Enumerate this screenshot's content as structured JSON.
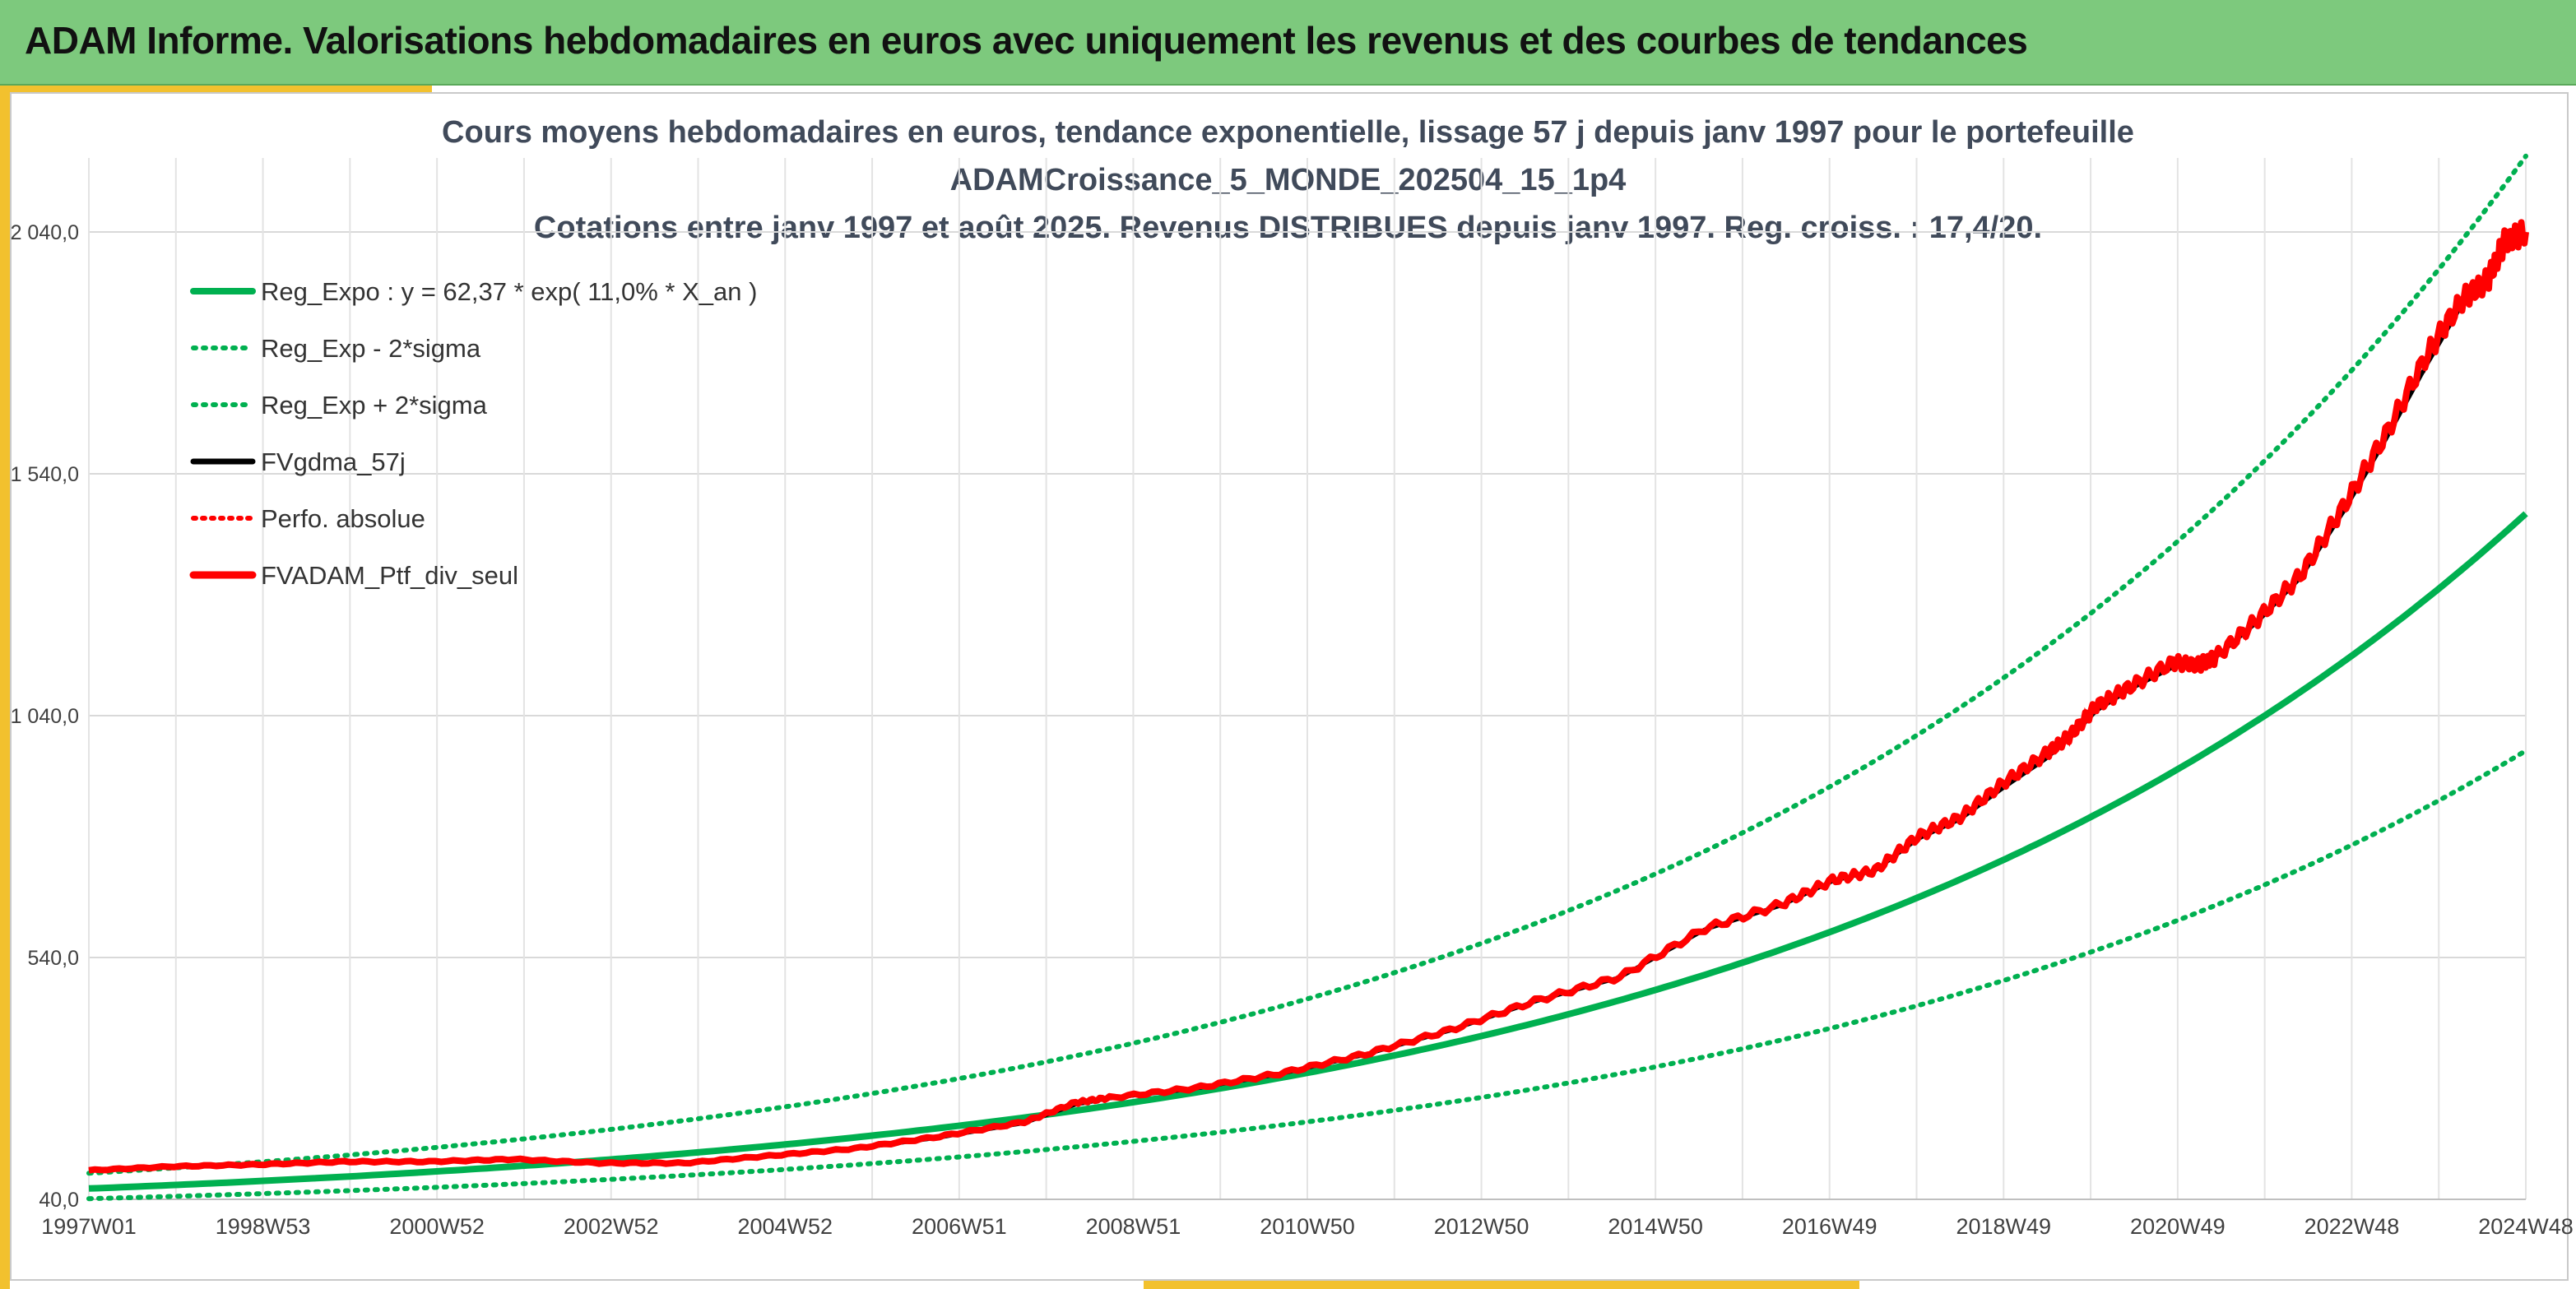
{
  "header": {
    "title": "ADAM Informe. Valorisations hebdomadaires en euros avec uniquement les revenus et des courbes de tendances"
  },
  "colors": {
    "banner": "#7dc97d",
    "accent": "#f2c12e",
    "regression": "#00b050",
    "smoothed": "#000000",
    "portfolio": "#ff0000"
  },
  "chart_data": {
    "type": "line",
    "title": "Cours moyens hebdomadaires en euros, tendance exponentielle, lissage 57 j depuis janv 1997 pour le portefeuille",
    "subtitle": "ADAMCroissance_5_MONDE_202504_15_1p4",
    "subtitle2": "Cotations entre janv 1997 et août 2025. Revenus DISTRIBUES depuis janv 1997. Reg. croiss. : 17,4/20.",
    "xlabel": "",
    "ylabel": "",
    "x_ticks": [
      "1997W01",
      "1998W53",
      "2000W52",
      "2002W52",
      "2004W52",
      "2006W51",
      "2008W51",
      "2010W50",
      "2012W50",
      "2014W50",
      "2016W49",
      "2018W49",
      "2020W49",
      "2022W48",
      "2024W48"
    ],
    "x_range_years": [
      1997.0,
      2025.65
    ],
    "y_ticks": [
      "40,0",
      "540,0",
      "1 040,0",
      "1 540,0",
      "2 040,0"
    ],
    "ylim": [
      40,
      2040
    ],
    "legend_position": "top-left",
    "grid": true,
    "series": [
      {
        "name": "Reg_Expo : y = 62,37 * exp( 11,0% *  X_an )",
        "style": "solid",
        "color": "#00b050",
        "a": 62.37,
        "rate": 0.11
      },
      {
        "name": "Reg_Exp - 2*sigma",
        "style": "dotted",
        "color": "#00b050",
        "a": 41.4,
        "rate": 0.11
      },
      {
        "name": "Reg_Exp + 2*sigma",
        "style": "dotted",
        "color": "#00b050",
        "a": 94.0,
        "rate": 0.11
      },
      {
        "name": "FVgdma_57j",
        "style": "solid",
        "color": "#000000"
      },
      {
        "name": "Perfo. absolue",
        "style": "dotted",
        "color": "#ff0000"
      },
      {
        "name": "FVADAM_Ptf_div_seul",
        "style": "solid",
        "color": "#ff0000"
      }
    ],
    "portfolio_points": {
      "x": [
        1997.0,
        1998.0,
        1999.0,
        2000.0,
        2001.0,
        2002.0,
        2003.0,
        2004.0,
        2005.0,
        2006.0,
        2007.0,
        2008.0,
        2008.6,
        2009.0,
        2010.0,
        2011.0,
        2012.0,
        2013.0,
        2014.0,
        2015.0,
        2016.0,
        2016.9,
        2017.5,
        2018.0,
        2018.5,
        2019.0,
        2019.5,
        2020.0,
        2020.3,
        2020.6,
        2021.0,
        2021.5,
        2021.8,
        2022.0,
        2022.5,
        2023.0,
        2023.5,
        2024.0,
        2024.5,
        2024.9,
        2025.2,
        2025.4,
        2025.65
      ],
      "y": [
        100,
        108,
        112,
        118,
        118,
        123,
        115,
        115,
        130,
        145,
        170,
        200,
        240,
        250,
        270,
        300,
        340,
        390,
        450,
        500,
        600,
        650,
        700,
        720,
        790,
        830,
        900,
        960,
        1000,
        1060,
        1100,
        1150,
        1145,
        1160,
        1240,
        1330,
        1470,
        1620,
        1790,
        1900,
        1940,
        2020,
        2040
      ]
    },
    "smoothed_points": {
      "x": [
        1997.0,
        1998.0,
        1999.0,
        2000.0,
        2001.0,
        2002.0,
        2003.0,
        2004.0,
        2005.0,
        2006.0,
        2007.0,
        2008.0,
        2008.6,
        2009.0,
        2010.0,
        2011.0,
        2012.0,
        2013.0,
        2014.0,
        2015.0,
        2016.0,
        2016.9,
        2017.5,
        2018.0,
        2018.5,
        2019.0,
        2019.5,
        2020.0,
        2020.3,
        2020.6,
        2021.0,
        2021.5,
        2021.8,
        2022.0,
        2022.5,
        2023.0,
        2023.5,
        2024.0,
        2024.5,
        2024.9,
        2025.2,
        2025.4,
        2025.65
      ],
      "y": [
        100,
        107,
        111,
        117,
        118,
        122,
        116,
        115,
        129,
        144,
        168,
        198,
        236,
        249,
        269,
        299,
        339,
        389,
        449,
        499,
        598,
        648,
        698,
        720,
        785,
        826,
        890,
        950,
        995,
        1050,
        1095,
        1140,
        1150,
        1160,
        1235,
        1325,
        1460,
        1610,
        1770,
        1890,
        1935,
        2005,
        2020
      ]
    }
  }
}
